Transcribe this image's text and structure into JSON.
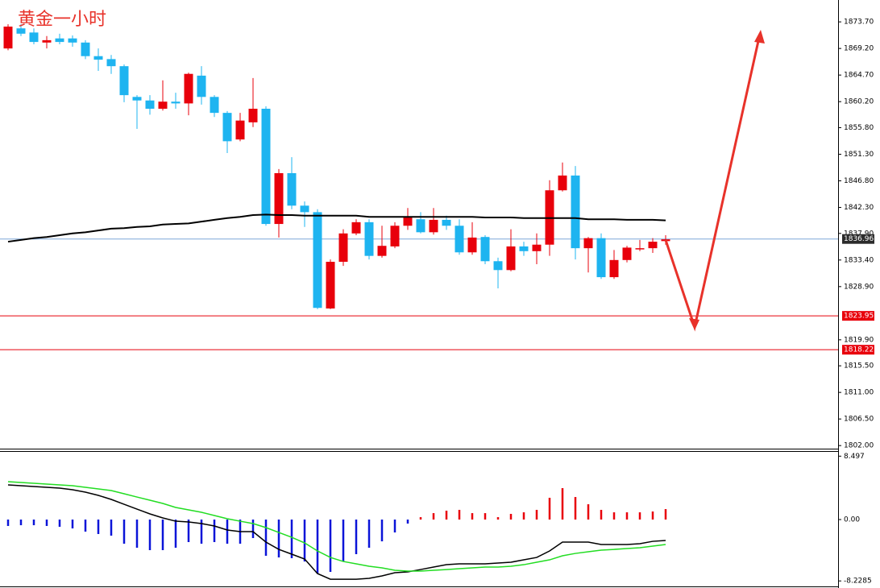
{
  "chart_data": [
    {
      "type": "candlestick",
      "title": "黄金一小时",
      "title_color": "#e8322a",
      "ylim": [
        1801.48,
        1877.4
      ],
      "yticks": [
        {
          "value": 1873.7,
          "label": "1873.70"
        },
        {
          "value": 1869.2,
          "label": "1869.20"
        },
        {
          "value": 1864.7,
          "label": "1864.70"
        },
        {
          "value": 1860.2,
          "label": "1860.20"
        },
        {
          "value": 1855.8,
          "label": "1855.80"
        },
        {
          "value": 1851.3,
          "label": "1851.30"
        },
        {
          "value": 1846.8,
          "label": "1846.80"
        },
        {
          "value": 1842.3,
          "label": "1842.30"
        },
        {
          "value": 1837.9,
          "label": "1837.90"
        },
        {
          "value": 1833.4,
          "label": "1833.40"
        },
        {
          "value": 1828.9,
          "label": "1828.90"
        },
        {
          "value": 1819.9,
          "label": "1819.90"
        },
        {
          "value": 1815.5,
          "label": "1815.50"
        },
        {
          "value": 1811,
          "label": "1811.00"
        },
        {
          "value": 1806.5,
          "label": "1806.50"
        },
        {
          "value": 1802,
          "label": "1802.00"
        }
      ],
      "up_color": "#e8000b",
      "down_color": "#1eb4f0",
      "open": [
        1869.2,
        1872.6,
        1871.9,
        1870.2,
        1870.9,
        1870.9,
        1870.2,
        1867.9,
        1867.4,
        1866.2,
        1861.0,
        1860.4,
        1859.0,
        1860.2,
        1859.9,
        1864.6,
        1861.0,
        1858.3,
        1853.8,
        1856.7,
        1859.0,
        1839.5,
        1848.1,
        1842.6,
        1841.5,
        1825.2,
        1833.1,
        1837.9,
        1839.8,
        1834.1,
        1835.7,
        1839.2,
        1840.3,
        1838.1,
        1840.2,
        1839.2,
        1834.7,
        1837.3,
        1833.2,
        1831.7,
        1835.7,
        1834.9,
        1836.0,
        1845.2,
        1847.7,
        1835.4,
        1837.1,
        1830.5,
        1833.4,
        1835.3,
        1835.4,
        1836.6
      ],
      "high": [
        1873.3,
        1873.3,
        1872.6,
        1871.3,
        1871.7,
        1871.4,
        1870.6,
        1869.2,
        1868.1,
        1866.5,
        1861.3,
        1861.3,
        1863.8,
        1861.7,
        1865.1,
        1866.2,
        1861.3,
        1858.6,
        1858.3,
        1864.2,
        1859.4,
        1848.8,
        1850.8,
        1843.3,
        1842.0,
        1833.5,
        1838.6,
        1840.3,
        1840.3,
        1839.2,
        1839.8,
        1842.2,
        1841.5,
        1842.2,
        1840.9,
        1840.3,
        1839.8,
        1837.6,
        1833.8,
        1838.6,
        1836.5,
        1837.9,
        1846.9,
        1849.9,
        1849.3,
        1837.3,
        1837.9,
        1835.1,
        1835.8,
        1836.8,
        1837.1,
        1837.6
      ],
      "low": [
        1868.9,
        1871.3,
        1869.9,
        1869.2,
        1869.9,
        1869.5,
        1867.4,
        1865.4,
        1864.9,
        1860.1,
        1855.6,
        1858.0,
        1858.7,
        1859.0,
        1857.9,
        1859.7,
        1857.6,
        1851.5,
        1853.5,
        1855.9,
        1839.2,
        1837.2,
        1842.0,
        1839.0,
        1825.1,
        1825.1,
        1832.4,
        1837.6,
        1833.5,
        1833.8,
        1835.4,
        1838.5,
        1837.9,
        1837.7,
        1838.5,
        1834.3,
        1834.3,
        1832.7,
        1828.6,
        1831.5,
        1834.1,
        1832.7,
        1834.1,
        1845.0,
        1833.5,
        1831.3,
        1830.2,
        1830.2,
        1833.0,
        1834.9,
        1834.6,
        1836.0
      ],
      "close": [
        1872.9,
        1871.7,
        1870.3,
        1870.6,
        1870.3,
        1870.2,
        1867.9,
        1867.3,
        1866.2,
        1861.3,
        1860.4,
        1859.0,
        1860.2,
        1859.9,
        1864.9,
        1861.0,
        1858.3,
        1853.5,
        1857.0,
        1859.0,
        1839.5,
        1848.1,
        1842.6,
        1841.5,
        1825.3,
        1833.1,
        1837.9,
        1839.8,
        1834.1,
        1835.8,
        1839.2,
        1840.6,
        1838.1,
        1840.2,
        1839.2,
        1834.7,
        1837.2,
        1833.2,
        1831.7,
        1835.7,
        1834.9,
        1836.0,
        1845.2,
        1847.7,
        1835.4,
        1837.1,
        1830.5,
        1833.4,
        1835.5,
        1835.4,
        1836.5,
        1836.9
      ],
      "ma": {
        "color": "#000000",
        "values": [
          1836.5,
          1836.8,
          1837.1,
          1837.3,
          1837.6,
          1837.9,
          1838.1,
          1838.4,
          1838.7,
          1838.8,
          1839.0,
          1839.1,
          1839.4,
          1839.5,
          1839.6,
          1839.9,
          1840.2,
          1840.5,
          1840.7,
          1841.0,
          1841.1,
          1841.0,
          1841.0,
          1840.9,
          1840.9,
          1840.9,
          1840.9,
          1840.9,
          1840.7,
          1840.7,
          1840.7,
          1840.7,
          1840.7,
          1840.7,
          1840.7,
          1840.7,
          1840.7,
          1840.6,
          1840.6,
          1840.6,
          1840.5,
          1840.5,
          1840.5,
          1840.5,
          1840.5,
          1840.3,
          1840.3,
          1840.3,
          1840.2,
          1840.2,
          1840.2,
          1840.1
        ]
      },
      "levels": [
        {
          "value": 1836.96,
          "color": "#7ea7d8",
          "box_color": "#2b2b2b"
        },
        {
          "value": 1823.95,
          "color": "#e8000b",
          "box_color": "#e8000b"
        },
        {
          "value": 1818.22,
          "color": "#e8000b",
          "box_color": "#e8000b"
        }
      ]
    },
    {
      "type": "macd",
      "ylim": [
        -8.96,
        9.18
      ],
      "yticks": [
        8.497,
        {
          "value": 0,
          "label": "0.00"
        },
        -8.2285
      ],
      "histogram": {
        "up_color": "#e8000b",
        "down_color": "#0a14d8",
        "values": [
          -0.86,
          -0.76,
          -0.76,
          -0.86,
          -0.97,
          -1.19,
          -1.62,
          -1.94,
          -2.16,
          -3.24,
          -3.78,
          -4.1,
          -4.1,
          -3.78,
          -3.02,
          -3.24,
          -3.02,
          -3.24,
          -3.24,
          -2.48,
          -4.86,
          -5.08,
          -5.18,
          -5.62,
          -7.24,
          -7.02,
          -5.62,
          -4.64,
          -3.78,
          -2.92,
          -1.73,
          -0.54,
          0.32,
          0.86,
          1.19,
          1.3,
          0.86,
          0.86,
          0.32,
          0.76,
          0.97,
          1.3,
          2.92,
          4.21,
          3.02,
          2.05,
          1.3,
          0.97,
          0.97,
          0.97,
          1.08,
          1.4
        ]
      },
      "series": [
        {
          "color": "#000000",
          "values": [
            4.64,
            4.54,
            4.43,
            4.32,
            4.21,
            4.0,
            3.67,
            3.24,
            2.7,
            2.05,
            1.4,
            0.76,
            0.22,
            -0.22,
            -0.32,
            -0.54,
            -0.86,
            -1.4,
            -1.62,
            -1.62,
            -3.02,
            -4.0,
            -4.64,
            -5.29,
            -7.24,
            -8.0,
            -8.0,
            -8.0,
            -7.88,
            -7.56,
            -7.13,
            -7.02,
            -6.7,
            -6.37,
            -6.05,
            -5.94,
            -5.94,
            -5.94,
            -5.83,
            -5.72,
            -5.4,
            -5.08,
            -4.21,
            -3.02,
            -3.02,
            -3.02,
            -3.35,
            -3.35,
            -3.35,
            -3.24,
            -2.92,
            -2.81
          ]
        },
        {
          "color": "#22dd22",
          "values": [
            5.08,
            4.97,
            4.86,
            4.75,
            4.64,
            4.54,
            4.32,
            4.1,
            3.89,
            3.46,
            3.02,
            2.59,
            2.16,
            1.62,
            1.3,
            0.97,
            0.54,
            0.11,
            -0.22,
            -0.54,
            -1.08,
            -1.73,
            -2.38,
            -3.13,
            -4.21,
            -5.08,
            -5.62,
            -5.94,
            -6.26,
            -6.48,
            -6.8,
            -6.91,
            -6.91,
            -6.8,
            -6.7,
            -6.59,
            -6.48,
            -6.37,
            -6.37,
            -6.26,
            -6.05,
            -5.72,
            -5.4,
            -4.86,
            -4.54,
            -4.32,
            -4.1,
            -4.0,
            -3.89,
            -3.78,
            -3.56,
            -3.35
          ]
        }
      ]
    }
  ]
}
